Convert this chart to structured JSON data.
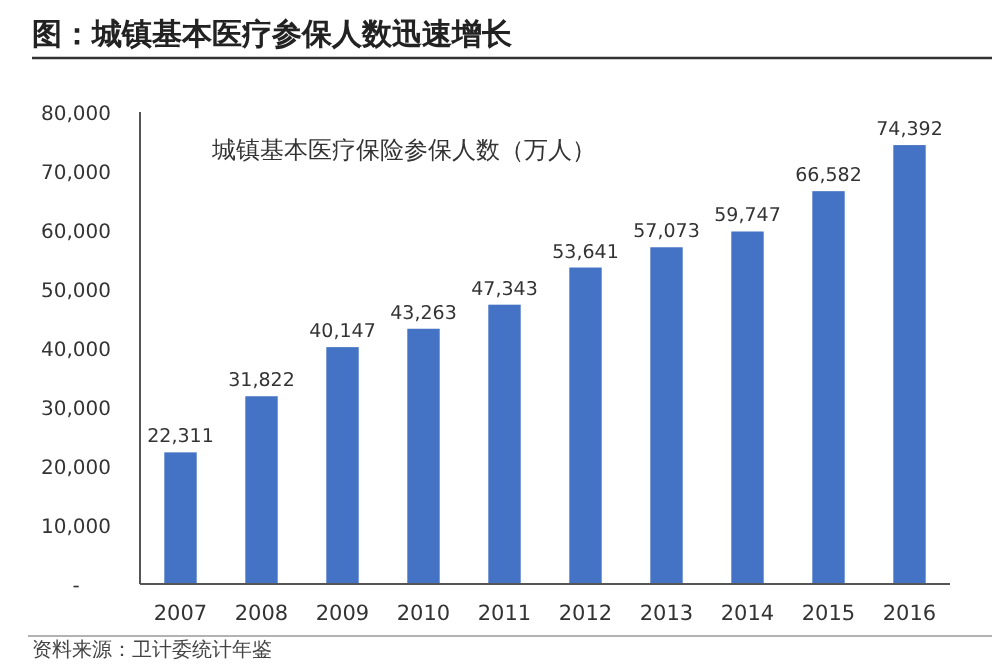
{
  "chart_data": {
    "type": "bar",
    "title": "图：城镇基本医疗参保人数迅速增长",
    "subtitle": "城镇基本医疗保险参保人数（万人）",
    "categories": [
      "2007",
      "2008",
      "2009",
      "2010",
      "2011",
      "2012",
      "2013",
      "2014",
      "2015",
      "2016"
    ],
    "values": [
      22311,
      31822,
      40147,
      43263,
      47343,
      53641,
      57073,
      59747,
      66582,
      74392
    ],
    "value_labels": [
      "22,311",
      "31,822",
      "40,147",
      "43,263",
      "47,343",
      "53,641",
      "57,073",
      "59,747",
      "66,582",
      "74,392"
    ],
    "color": "#4472c4",
    "ylim": [
      0,
      80000
    ],
    "yticks": [
      {
        "value": 0,
        "label": "-"
      },
      {
        "value": 10000,
        "label": "10,000"
      },
      {
        "value": 20000,
        "label": "20,000"
      },
      {
        "value": 30000,
        "label": "30,000"
      },
      {
        "value": 40000,
        "label": "40,000"
      },
      {
        "value": 50000,
        "label": "50,000"
      },
      {
        "value": 60000,
        "label": "60,000"
      },
      {
        "value": 70000,
        "label": "70,000"
      },
      {
        "value": 80000,
        "label": "80,000"
      }
    ],
    "grid": false,
    "annotations": [
      "资料来源：卫计委统计年鉴"
    ]
  }
}
